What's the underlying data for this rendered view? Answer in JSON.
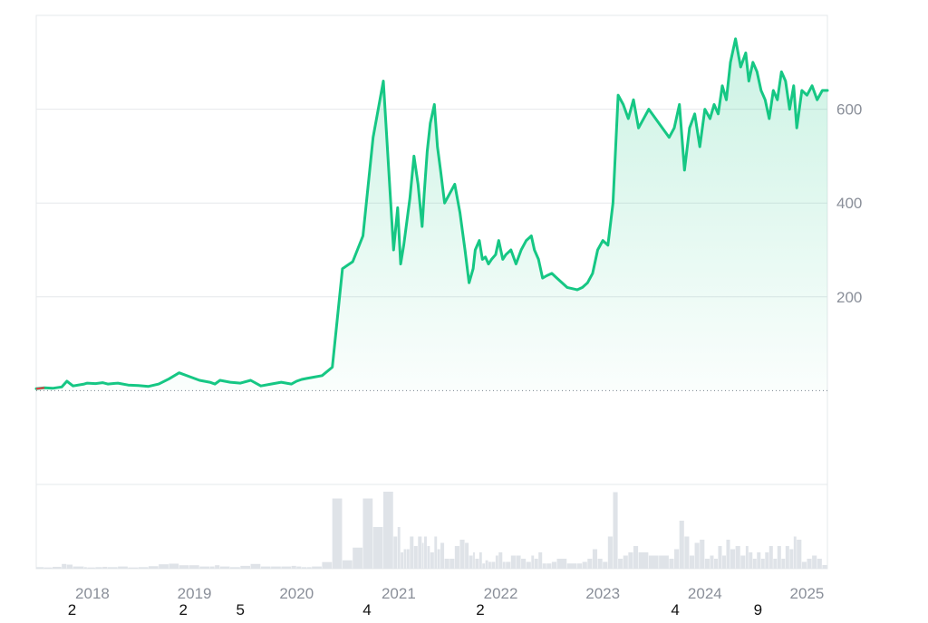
{
  "chart_data": {
    "type": "area",
    "y_ticks": [
      200,
      400,
      600
    ],
    "y_range": [
      -200,
      800
    ],
    "x_range": [
      2017.5,
      2025.25
    ],
    "baseline_value": 0,
    "x_ticks": [
      "2018",
      "2019",
      "2020",
      "2021",
      "2022",
      "2023",
      "2024",
      "2025"
    ],
    "markers": [
      {
        "x": 2017.85,
        "label": "2"
      },
      {
        "x": 2018.94,
        "label": "2"
      },
      {
        "x": 2019.5,
        "label": "5"
      },
      {
        "x": 2020.74,
        "label": "4"
      },
      {
        "x": 2021.85,
        "label": "2"
      },
      {
        "x": 2023.76,
        "label": "4"
      },
      {
        "x": 2024.57,
        "label": "9"
      }
    ],
    "colors": {
      "line": "#16c784",
      "line_negative": "#ea3943",
      "fill_top": "#16c784",
      "grid": "#e6e8eb",
      "volume": "#dfe3e8",
      "baseline": "#7d8590"
    },
    "series": [
      {
        "x": [
          2017.5,
          2017.58,
          2017.66,
          2017.75,
          2017.8,
          2017.86,
          2017.97,
          2018.0,
          2018.08,
          2018.15,
          2018.2,
          2018.3,
          2018.4,
          2018.5,
          2018.6,
          2018.7,
          2018.8,
          2018.9,
          2019.0,
          2019.1,
          2019.2,
          2019.25,
          2019.3,
          2019.4,
          2019.5,
          2019.6,
          2019.7,
          2019.8,
          2019.9,
          2020.0,
          2020.05,
          2020.1,
          2020.15,
          2020.2,
          2020.3,
          2020.4,
          2020.5,
          2020.6,
          2020.7,
          2020.8,
          2020.9,
          2021.0,
          2021.04,
          2021.07,
          2021.1,
          2021.13,
          2021.16,
          2021.2,
          2021.24,
          2021.28,
          2021.3,
          2021.33,
          2021.36,
          2021.4,
          2021.43,
          2021.46,
          2021.5,
          2021.55,
          2021.6,
          2021.65,
          2021.7,
          2021.74,
          2021.78,
          2021.8,
          2021.84,
          2021.87,
          2021.9,
          2021.93,
          2021.96,
          2022.0,
          2022.03,
          2022.07,
          2022.1,
          2022.15,
          2022.2,
          2022.25,
          2022.3,
          2022.35,
          2022.38,
          2022.42,
          2022.46,
          2022.5,
          2022.55,
          2022.6,
          2022.7,
          2022.8,
          2022.85,
          2022.9,
          2022.95,
          2023.0,
          2023.05,
          2023.1,
          2023.15,
          2023.2,
          2023.25,
          2023.3,
          2023.35,
          2023.4,
          2023.5,
          2023.6,
          2023.7,
          2023.75,
          2023.8,
          2023.85,
          2023.9,
          2023.95,
          2024.0,
          2024.05,
          2024.1,
          2024.14,
          2024.18,
          2024.22,
          2024.26,
          2024.3,
          2024.35,
          2024.4,
          2024.45,
          2024.48,
          2024.52,
          2024.56,
          2024.6,
          2024.64,
          2024.68,
          2024.72,
          2024.76,
          2024.8,
          2024.84,
          2024.88,
          2024.92,
          2024.95,
          2025.0,
          2025.05,
          2025.1,
          2025.15,
          2025.2,
          2025.25
        ],
        "y": [
          4,
          6,
          5,
          8,
          20,
          10,
          14,
          16,
          15,
          17,
          14,
          16,
          12,
          11,
          9,
          14,
          25,
          38,
          30,
          22,
          18,
          14,
          22,
          18,
          16,
          22,
          10,
          14,
          18,
          14,
          20,
          24,
          26,
          28,
          32,
          50,
          260,
          275,
          330,
          540,
          660,
          300,
          390,
          270,
          310,
          360,
          410,
          500,
          440,
          350,
          420,
          510,
          570,
          610,
          520,
          470,
          400,
          420,
          440,
          380,
          300,
          230,
          260,
          300,
          320,
          280,
          285,
          270,
          280,
          290,
          320,
          280,
          290,
          300,
          270,
          300,
          320,
          330,
          300,
          280,
          240,
          245,
          250,
          240,
          220,
          215,
          220,
          230,
          250,
          300,
          320,
          310,
          400,
          630,
          610,
          580,
          620,
          560,
          600,
          570,
          540,
          560,
          610,
          470,
          560,
          590,
          520,
          600,
          580,
          610,
          590,
          650,
          620,
          700,
          750,
          690,
          720,
          660,
          700,
          680,
          640,
          620,
          580,
          640,
          620,
          680,
          660,
          600,
          650,
          560,
          640,
          630,
          650,
          620,
          640,
          640
        ]
      }
    ]
  }
}
